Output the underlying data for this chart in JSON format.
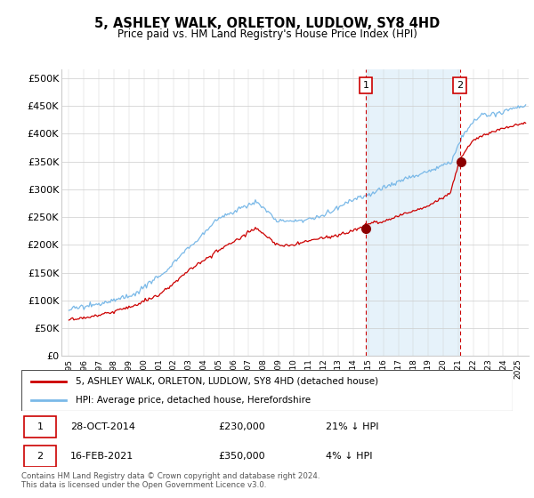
{
  "title": "5, ASHLEY WALK, ORLETON, LUDLOW, SY8 4HD",
  "subtitle": "Price paid vs. HM Land Registry's House Price Index (HPI)",
  "ylabel_ticks": [
    "£0",
    "£50K",
    "£100K",
    "£150K",
    "£200K",
    "£250K",
    "£300K",
    "£350K",
    "£400K",
    "£450K",
    "£500K"
  ],
  "ytick_values": [
    0,
    50000,
    100000,
    150000,
    200000,
    250000,
    300000,
    350000,
    400000,
    450000,
    500000
  ],
  "ylim": [
    0,
    515000
  ],
  "xlim_start": 1994.5,
  "xlim_end": 2025.7,
  "hpi_color": "#7ab9e8",
  "hpi_fill_color": "#d6eaf8",
  "price_color": "#cc0000",
  "marker_color": "#8b0000",
  "transaction1_x": 2014.83,
  "transaction1_y": 230000,
  "transaction1_label": "1",
  "transaction2_x": 2021.12,
  "transaction2_y": 350000,
  "transaction2_label": "2",
  "legend_line1": "5, ASHLEY WALK, ORLETON, LUDLOW, SY8 4HD (detached house)",
  "legend_line2": "HPI: Average price, detached house, Herefordshire",
  "table_row1_num": "1",
  "table_row1_date": "28-OCT-2014",
  "table_row1_price": "£230,000",
  "table_row1_hpi": "21% ↓ HPI",
  "table_row2_num": "2",
  "table_row2_date": "16-FEB-2021",
  "table_row2_price": "£350,000",
  "table_row2_hpi": "4% ↓ HPI",
  "footer": "Contains HM Land Registry data © Crown copyright and database right 2024.\nThis data is licensed under the Open Government Licence v3.0.",
  "background_color": "#ffffff",
  "grid_color": "#cccccc"
}
